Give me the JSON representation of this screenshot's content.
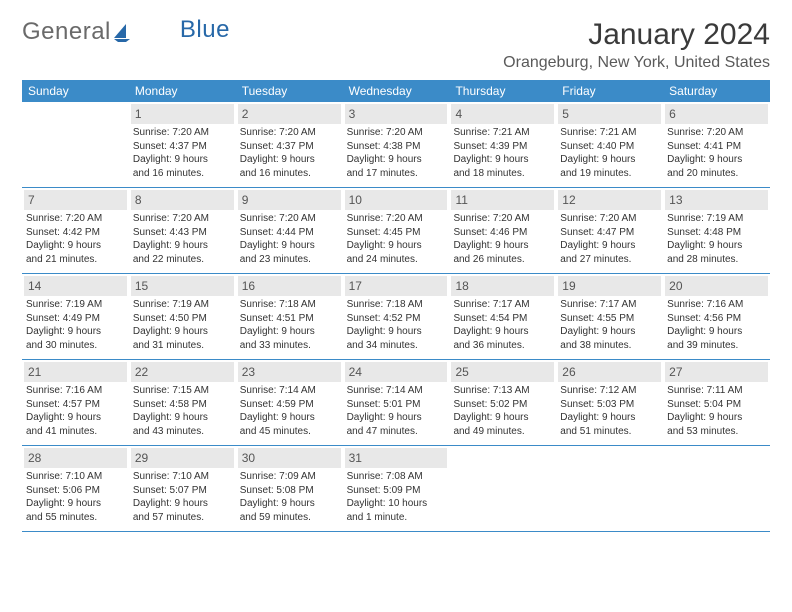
{
  "logo": {
    "text1": "General",
    "text2": "Blue"
  },
  "title": "January 2024",
  "location": "Orangeburg, New York, United States",
  "colors": {
    "header_bg": "#3b8bc8",
    "header_text": "#ffffff",
    "daynum_bg": "#e8e8e8",
    "border": "#3b8bc8",
    "logo_blue": "#2768a8"
  },
  "day_names": [
    "Sunday",
    "Monday",
    "Tuesday",
    "Wednesday",
    "Thursday",
    "Friday",
    "Saturday"
  ],
  "weeks": [
    [
      {
        "n": "",
        "sunrise": "",
        "sunset": "",
        "daylight1": "",
        "daylight2": ""
      },
      {
        "n": "1",
        "sunrise": "Sunrise: 7:20 AM",
        "sunset": "Sunset: 4:37 PM",
        "daylight1": "Daylight: 9 hours",
        "daylight2": "and 16 minutes."
      },
      {
        "n": "2",
        "sunrise": "Sunrise: 7:20 AM",
        "sunset": "Sunset: 4:37 PM",
        "daylight1": "Daylight: 9 hours",
        "daylight2": "and 16 minutes."
      },
      {
        "n": "3",
        "sunrise": "Sunrise: 7:20 AM",
        "sunset": "Sunset: 4:38 PM",
        "daylight1": "Daylight: 9 hours",
        "daylight2": "and 17 minutes."
      },
      {
        "n": "4",
        "sunrise": "Sunrise: 7:21 AM",
        "sunset": "Sunset: 4:39 PM",
        "daylight1": "Daylight: 9 hours",
        "daylight2": "and 18 minutes."
      },
      {
        "n": "5",
        "sunrise": "Sunrise: 7:21 AM",
        "sunset": "Sunset: 4:40 PM",
        "daylight1": "Daylight: 9 hours",
        "daylight2": "and 19 minutes."
      },
      {
        "n": "6",
        "sunrise": "Sunrise: 7:20 AM",
        "sunset": "Sunset: 4:41 PM",
        "daylight1": "Daylight: 9 hours",
        "daylight2": "and 20 minutes."
      }
    ],
    [
      {
        "n": "7",
        "sunrise": "Sunrise: 7:20 AM",
        "sunset": "Sunset: 4:42 PM",
        "daylight1": "Daylight: 9 hours",
        "daylight2": "and 21 minutes."
      },
      {
        "n": "8",
        "sunrise": "Sunrise: 7:20 AM",
        "sunset": "Sunset: 4:43 PM",
        "daylight1": "Daylight: 9 hours",
        "daylight2": "and 22 minutes."
      },
      {
        "n": "9",
        "sunrise": "Sunrise: 7:20 AM",
        "sunset": "Sunset: 4:44 PM",
        "daylight1": "Daylight: 9 hours",
        "daylight2": "and 23 minutes."
      },
      {
        "n": "10",
        "sunrise": "Sunrise: 7:20 AM",
        "sunset": "Sunset: 4:45 PM",
        "daylight1": "Daylight: 9 hours",
        "daylight2": "and 24 minutes."
      },
      {
        "n": "11",
        "sunrise": "Sunrise: 7:20 AM",
        "sunset": "Sunset: 4:46 PM",
        "daylight1": "Daylight: 9 hours",
        "daylight2": "and 26 minutes."
      },
      {
        "n": "12",
        "sunrise": "Sunrise: 7:20 AM",
        "sunset": "Sunset: 4:47 PM",
        "daylight1": "Daylight: 9 hours",
        "daylight2": "and 27 minutes."
      },
      {
        "n": "13",
        "sunrise": "Sunrise: 7:19 AM",
        "sunset": "Sunset: 4:48 PM",
        "daylight1": "Daylight: 9 hours",
        "daylight2": "and 28 minutes."
      }
    ],
    [
      {
        "n": "14",
        "sunrise": "Sunrise: 7:19 AM",
        "sunset": "Sunset: 4:49 PM",
        "daylight1": "Daylight: 9 hours",
        "daylight2": "and 30 minutes."
      },
      {
        "n": "15",
        "sunrise": "Sunrise: 7:19 AM",
        "sunset": "Sunset: 4:50 PM",
        "daylight1": "Daylight: 9 hours",
        "daylight2": "and 31 minutes."
      },
      {
        "n": "16",
        "sunrise": "Sunrise: 7:18 AM",
        "sunset": "Sunset: 4:51 PM",
        "daylight1": "Daylight: 9 hours",
        "daylight2": "and 33 minutes."
      },
      {
        "n": "17",
        "sunrise": "Sunrise: 7:18 AM",
        "sunset": "Sunset: 4:52 PM",
        "daylight1": "Daylight: 9 hours",
        "daylight2": "and 34 minutes."
      },
      {
        "n": "18",
        "sunrise": "Sunrise: 7:17 AM",
        "sunset": "Sunset: 4:54 PM",
        "daylight1": "Daylight: 9 hours",
        "daylight2": "and 36 minutes."
      },
      {
        "n": "19",
        "sunrise": "Sunrise: 7:17 AM",
        "sunset": "Sunset: 4:55 PM",
        "daylight1": "Daylight: 9 hours",
        "daylight2": "and 38 minutes."
      },
      {
        "n": "20",
        "sunrise": "Sunrise: 7:16 AM",
        "sunset": "Sunset: 4:56 PM",
        "daylight1": "Daylight: 9 hours",
        "daylight2": "and 39 minutes."
      }
    ],
    [
      {
        "n": "21",
        "sunrise": "Sunrise: 7:16 AM",
        "sunset": "Sunset: 4:57 PM",
        "daylight1": "Daylight: 9 hours",
        "daylight2": "and 41 minutes."
      },
      {
        "n": "22",
        "sunrise": "Sunrise: 7:15 AM",
        "sunset": "Sunset: 4:58 PM",
        "daylight1": "Daylight: 9 hours",
        "daylight2": "and 43 minutes."
      },
      {
        "n": "23",
        "sunrise": "Sunrise: 7:14 AM",
        "sunset": "Sunset: 4:59 PM",
        "daylight1": "Daylight: 9 hours",
        "daylight2": "and 45 minutes."
      },
      {
        "n": "24",
        "sunrise": "Sunrise: 7:14 AM",
        "sunset": "Sunset: 5:01 PM",
        "daylight1": "Daylight: 9 hours",
        "daylight2": "and 47 minutes."
      },
      {
        "n": "25",
        "sunrise": "Sunrise: 7:13 AM",
        "sunset": "Sunset: 5:02 PM",
        "daylight1": "Daylight: 9 hours",
        "daylight2": "and 49 minutes."
      },
      {
        "n": "26",
        "sunrise": "Sunrise: 7:12 AM",
        "sunset": "Sunset: 5:03 PM",
        "daylight1": "Daylight: 9 hours",
        "daylight2": "and 51 minutes."
      },
      {
        "n": "27",
        "sunrise": "Sunrise: 7:11 AM",
        "sunset": "Sunset: 5:04 PM",
        "daylight1": "Daylight: 9 hours",
        "daylight2": "and 53 minutes."
      }
    ],
    [
      {
        "n": "28",
        "sunrise": "Sunrise: 7:10 AM",
        "sunset": "Sunset: 5:06 PM",
        "daylight1": "Daylight: 9 hours",
        "daylight2": "and 55 minutes."
      },
      {
        "n": "29",
        "sunrise": "Sunrise: 7:10 AM",
        "sunset": "Sunset: 5:07 PM",
        "daylight1": "Daylight: 9 hours",
        "daylight2": "and 57 minutes."
      },
      {
        "n": "30",
        "sunrise": "Sunrise: 7:09 AM",
        "sunset": "Sunset: 5:08 PM",
        "daylight1": "Daylight: 9 hours",
        "daylight2": "and 59 minutes."
      },
      {
        "n": "31",
        "sunrise": "Sunrise: 7:08 AM",
        "sunset": "Sunset: 5:09 PM",
        "daylight1": "Daylight: 10 hours",
        "daylight2": "and 1 minute."
      },
      {
        "n": "",
        "sunrise": "",
        "sunset": "",
        "daylight1": "",
        "daylight2": ""
      },
      {
        "n": "",
        "sunrise": "",
        "sunset": "",
        "daylight1": "",
        "daylight2": ""
      },
      {
        "n": "",
        "sunrise": "",
        "sunset": "",
        "daylight1": "",
        "daylight2": ""
      }
    ]
  ]
}
